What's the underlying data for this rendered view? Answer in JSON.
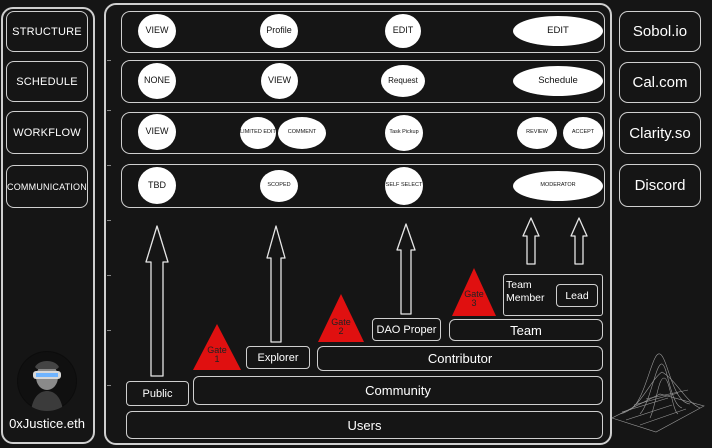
{
  "left_nav": {
    "items": [
      {
        "label": "STRUCTURE"
      },
      {
        "label": "SCHEDULE"
      },
      {
        "label": "WORKFLOW"
      },
      {
        "label": "COMMUNICATION"
      }
    ],
    "user_name": "0xJustice.eth"
  },
  "rows": [
    {
      "pills": [
        "VIEW",
        "Profile",
        "EDIT",
        "EDIT"
      ],
      "tool": "Sobol.io"
    },
    {
      "pills": [
        "NONE",
        "VIEW",
        "Request",
        "Schedule"
      ],
      "tool": "Cal.com"
    },
    {
      "pills": [
        "VIEW",
        "LIMITED EDIT",
        "COMMENT",
        "Task Pickup",
        "REVIEW",
        "ACCEPT"
      ],
      "tool": "Clarity.so"
    },
    {
      "pills": [
        "TBD",
        "SCOPED",
        "SELF SELECT",
        "MODERATOR"
      ],
      "tool": "Discord"
    }
  ],
  "roles": {
    "public": "Public",
    "explorer": "Explorer",
    "dao_proper": "DAO Proper",
    "team_member": "Team Member",
    "lead": "Lead"
  },
  "tiers": {
    "team": "Team",
    "contributor": "Contributor",
    "community": "Community",
    "users": "Users"
  },
  "gates": [
    {
      "label": "Gate 1"
    },
    {
      "label": "Gate 2"
    },
    {
      "label": "Gate 3"
    }
  ],
  "colors": {
    "background": "#151515",
    "outline": "#cfcfcf",
    "pill": "#ffffff",
    "gate": "#e01010"
  }
}
